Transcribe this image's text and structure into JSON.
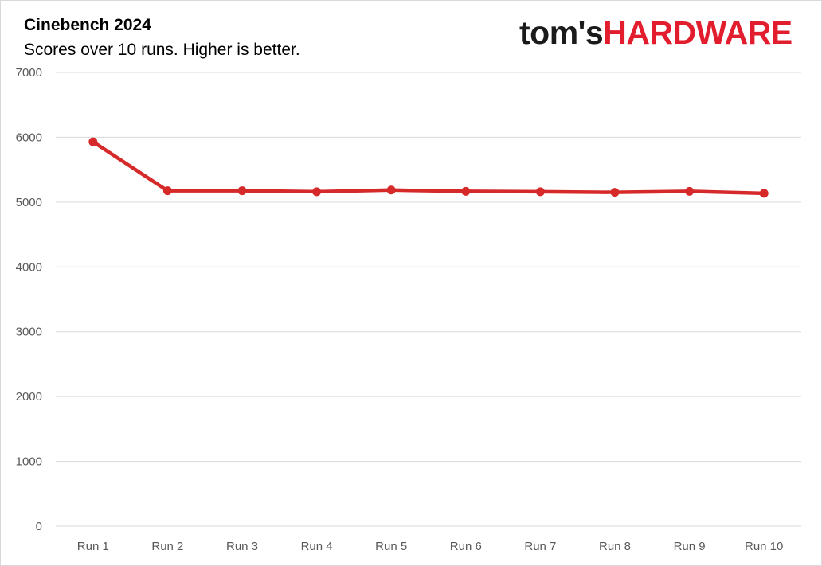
{
  "logo": {
    "part1": "tom's",
    "part2": "HARDWARE"
  },
  "chart_data": {
    "type": "line",
    "title": "Cinebench 2024",
    "subtitle": "Scores over 10 runs. Higher is better.",
    "xlabel": "",
    "ylabel": "",
    "categories": [
      "Run 1",
      "Run 2",
      "Run 3",
      "Run 4",
      "Run 5",
      "Run 6",
      "Run 7",
      "Run 8",
      "Run 9",
      "Run 10"
    ],
    "series": [
      {
        "values": [
          5930,
          5175,
          5175,
          5160,
          5185,
          5165,
          5160,
          5150,
          5165,
          5135
        ],
        "color": "#d62a2a"
      }
    ],
    "ylim": [
      0,
      7000
    ],
    "yticks": [
      0,
      1000,
      2000,
      3000,
      4000,
      5000,
      6000,
      7000
    ],
    "grid": true,
    "legend": "none"
  }
}
